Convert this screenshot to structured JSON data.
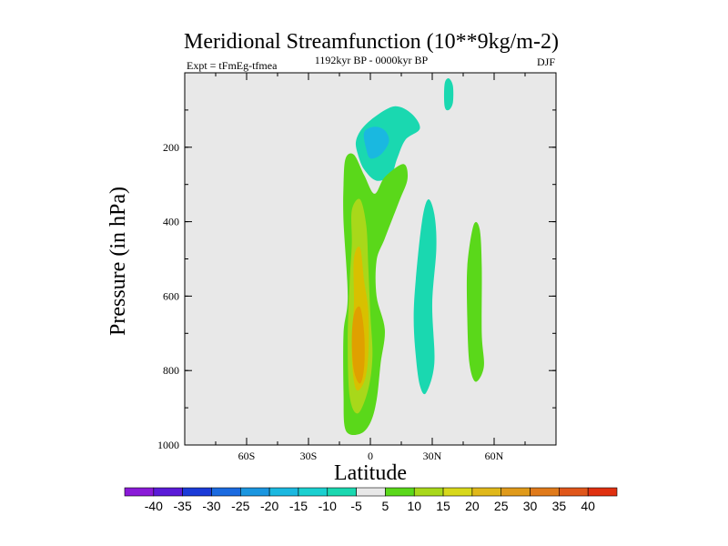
{
  "chart_data": {
    "type": "contour",
    "title": "Meridional Streamfunction (10**9kg/m-2)",
    "subtitle_left": "Expt = tFmEg-tfmea",
    "subtitle_center": "1192kyr BP - 0000kyr BP",
    "subtitle_right": "DJF",
    "xlabel": "Latitude",
    "ylabel": "Pressure (in hPa)",
    "xlim": [
      -90,
      90
    ],
    "ylim": [
      1000,
      0
    ],
    "x_ticks": [
      {
        "value": -60,
        "label": "60S"
      },
      {
        "value": -30,
        "label": "30S"
      },
      {
        "value": 0,
        "label": "0"
      },
      {
        "value": 30,
        "label": "30N"
      },
      {
        "value": 60,
        "label": "60N"
      }
    ],
    "y_ticks": [
      {
        "value": 200,
        "label": "200"
      },
      {
        "value": 400,
        "label": "400"
      },
      {
        "value": 600,
        "label": "600"
      },
      {
        "value": 800,
        "label": "800"
      },
      {
        "value": 1000,
        "label": "1000"
      }
    ],
    "colorbar": {
      "labels": [
        "-40",
        "-35",
        "-30",
        "-25",
        "-20",
        "-15",
        "-10",
        "-5",
        "5",
        "10",
        "15",
        "20",
        "25",
        "30",
        "35",
        "40"
      ],
      "colors": [
        "#8a1ad8",
        "#5a1ad8",
        "#1a3ad8",
        "#1a6ae0",
        "#1a96e0",
        "#1ab8e0",
        "#1ad0d0",
        "#1ad8b0",
        "#e8e8e8",
        "#5ad81a",
        "#a8d81a",
        "#d8d81a",
        "#e0b81a",
        "#e09a1a",
        "#e07a1a",
        "#e0561a",
        "#e03010"
      ]
    },
    "regions": [
      {
        "name": "upper-negative-cell",
        "level": -10,
        "points": [
          [
            -7,
            185
          ],
          [
            -4,
            150
          ],
          [
            3,
            115
          ],
          [
            12,
            90
          ],
          [
            20,
            110
          ],
          [
            24,
            150
          ],
          [
            17,
            180
          ],
          [
            13,
            230
          ],
          [
            10,
            275
          ],
          [
            3,
            290
          ],
          [
            -3,
            260
          ],
          [
            -6,
            220
          ]
        ]
      },
      {
        "name": "upper-negative-core",
        "level": -15,
        "points": [
          [
            -3,
            160
          ],
          [
            2,
            145
          ],
          [
            7,
            155
          ],
          [
            9,
            185
          ],
          [
            5,
            220
          ],
          [
            0,
            230
          ],
          [
            -2,
            205
          ]
        ]
      },
      {
        "name": "polar-upper-negative",
        "level": -10,
        "points": [
          [
            36,
            30
          ],
          [
            38,
            15
          ],
          [
            40,
            35
          ],
          [
            40,
            80
          ],
          [
            38,
            100
          ],
          [
            36,
            90
          ]
        ]
      },
      {
        "name": "mid-negative-band",
        "level": -10,
        "points": [
          [
            22,
            555
          ],
          [
            25,
            400
          ],
          [
            28,
            340
          ],
          [
            31,
            380
          ],
          [
            32,
            470
          ],
          [
            30,
            620
          ],
          [
            31,
            780
          ],
          [
            27,
            860
          ],
          [
            24,
            840
          ],
          [
            22,
            760
          ],
          [
            21,
            660
          ]
        ]
      },
      {
        "name": "tropical-positive-cell",
        "level": 5,
        "points": [
          [
            -12,
            230
          ],
          [
            -8,
            220
          ],
          [
            -3,
            275
          ],
          [
            2,
            325
          ],
          [
            7,
            280
          ],
          [
            16,
            245
          ],
          [
            18,
            285
          ],
          [
            14,
            345
          ],
          [
            7,
            445
          ],
          [
            3,
            505
          ],
          [
            3,
            600
          ],
          [
            7,
            690
          ],
          [
            5,
            780
          ],
          [
            3,
            880
          ],
          [
            0,
            940
          ],
          [
            -5,
            970
          ],
          [
            -12,
            960
          ],
          [
            -13,
            860
          ],
          [
            -13,
            700
          ],
          [
            -11,
            600
          ],
          [
            -13,
            400
          ],
          [
            -13,
            300
          ]
        ]
      },
      {
        "name": "tropical-positive-inner",
        "level": 10,
        "points": [
          [
            -9,
            370
          ],
          [
            -5,
            340
          ],
          [
            -2,
            410
          ],
          [
            -1,
            520
          ],
          [
            0,
            650
          ],
          [
            1,
            760
          ],
          [
            -1,
            850
          ],
          [
            -6,
            915
          ],
          [
            -10,
            870
          ],
          [
            -11,
            720
          ],
          [
            -10,
            560
          ],
          [
            -9,
            460
          ]
        ]
      },
      {
        "name": "tropical-positive-core",
        "level": 15,
        "points": [
          [
            -8,
            500
          ],
          [
            -5,
            470
          ],
          [
            -3,
            560
          ],
          [
            -1,
            640
          ],
          [
            -1,
            760
          ],
          [
            -3,
            830
          ],
          [
            -7,
            850
          ],
          [
            -9,
            760
          ],
          [
            -8,
            620
          ]
        ]
      },
      {
        "name": "tropical-positive-peak",
        "level": 20,
        "points": [
          [
            -8,
            650
          ],
          [
            -5,
            630
          ],
          [
            -3,
            700
          ],
          [
            -3,
            790
          ],
          [
            -5,
            835
          ],
          [
            -8,
            800
          ],
          [
            -9,
            720
          ]
        ]
      },
      {
        "name": "midlat-positive-band",
        "level": 5,
        "points": [
          [
            47,
            520
          ],
          [
            50,
            410
          ],
          [
            53,
            420
          ],
          [
            54,
            520
          ],
          [
            54,
            700
          ],
          [
            55,
            790
          ],
          [
            51,
            830
          ],
          [
            48,
            780
          ],
          [
            47,
            660
          ]
        ]
      }
    ]
  }
}
